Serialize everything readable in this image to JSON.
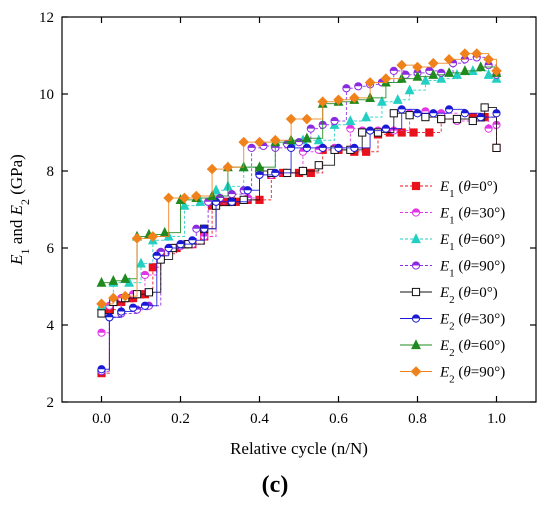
{
  "figure": {
    "panel_label": "(c)"
  },
  "chart_data": {
    "type": "line",
    "xlabel": "Relative cycle (n/N)",
    "ylabel": {
      "prefix": "E",
      "sub1": "1",
      "mid": " and E",
      "sub2": "2",
      "suffix": " (GPa)"
    },
    "xlim": [
      -0.1,
      1.1
    ],
    "ylim": [
      2,
      12
    ],
    "xticks": [
      "0.0",
      "0.2",
      "0.4",
      "0.6",
      "0.8",
      "1.0"
    ],
    "yticks": [
      "2",
      "4",
      "6",
      "8",
      "10",
      "12"
    ],
    "grid": false,
    "legend_position": "right",
    "series": [
      {
        "name": "E1 (θ=0°)",
        "label": {
          "sym": "E",
          "sub": "1",
          "ang": "0°"
        },
        "color": "#e8121c",
        "marker": "square",
        "dashed": true,
        "filled": true,
        "x": [
          0.0,
          0.02,
          0.05,
          0.08,
          0.11,
          0.13,
          0.15,
          0.19,
          0.23,
          0.26,
          0.28,
          0.31,
          0.34,
          0.37,
          0.4,
          0.43,
          0.46,
          0.5,
          0.53,
          0.56,
          0.6,
          0.64,
          0.67,
          0.7,
          0.73,
          0.76,
          0.79,
          0.83,
          0.86,
          0.9,
          0.94,
          0.97,
          1.0
        ],
        "y": [
          2.75,
          4.4,
          4.6,
          4.7,
          4.8,
          5.5,
          5.85,
          6.0,
          6.1,
          6.3,
          7.1,
          7.2,
          7.2,
          7.25,
          7.25,
          7.9,
          7.95,
          7.95,
          7.95,
          8.55,
          8.55,
          8.5,
          8.5,
          8.95,
          9.0,
          9.0,
          9.0,
          9.0,
          9.35,
          9.35,
          9.4,
          9.4,
          8.6
        ]
      },
      {
        "name": "E1 (θ=30°)",
        "label": {
          "sym": "E",
          "sub": "1",
          "ang": "30°"
        },
        "color": "#e334e8",
        "marker": "circle-half",
        "dashed": true,
        "filled": true,
        "x": [
          0.0,
          0.02,
          0.05,
          0.08,
          0.11,
          0.14,
          0.17,
          0.2,
          0.23,
          0.26,
          0.29,
          0.33,
          0.37,
          0.4,
          0.43,
          0.47,
          0.51,
          0.55,
          0.59,
          0.63,
          0.66,
          0.7,
          0.74,
          0.78,
          0.82,
          0.86,
          0.9,
          0.94,
          0.98,
          1.0
        ],
        "y": [
          3.8,
          4.5,
          4.7,
          4.8,
          5.3,
          5.8,
          6.0,
          6.05,
          6.1,
          6.3,
          7.15,
          7.2,
          7.3,
          7.9,
          7.9,
          7.95,
          8.5,
          8.55,
          8.6,
          9.1,
          9.05,
          9.05,
          9.05,
          9.5,
          9.55,
          9.5,
          9.3,
          9.3,
          9.1,
          9.2
        ]
      },
      {
        "name": "E1 (θ=60°)",
        "label": {
          "sym": "E",
          "sub": "1",
          "ang": "60°"
        },
        "color": "#22cfc2",
        "marker": "triangle",
        "dashed": true,
        "filled": true,
        "x": [
          0.0,
          0.03,
          0.07,
          0.1,
          0.13,
          0.17,
          0.21,
          0.25,
          0.29,
          0.32,
          0.36,
          0.4,
          0.44,
          0.48,
          0.51,
          0.55,
          0.59,
          0.63,
          0.67,
          0.71,
          0.75,
          0.78,
          0.82,
          0.86,
          0.9,
          0.94,
          0.98,
          1.0
        ],
        "y": [
          4.5,
          5.1,
          5.1,
          5.6,
          6.2,
          6.3,
          7.1,
          7.2,
          7.5,
          7.6,
          8.1,
          8.0,
          8.7,
          8.75,
          8.8,
          8.8,
          9.2,
          9.3,
          9.4,
          9.8,
          9.85,
          10.1,
          10.35,
          10.4,
          10.5,
          10.6,
          10.5,
          10.4
        ]
      },
      {
        "name": "E1 (θ=90°)",
        "label": {
          "sym": "E",
          "sub": "1",
          "ang": "90°"
        },
        "color": "#8a2be2",
        "marker": "circle-half",
        "dashed": true,
        "filled": true,
        "x": [
          0.0,
          0.02,
          0.05,
          0.09,
          0.12,
          0.15,
          0.18,
          0.21,
          0.24,
          0.27,
          0.3,
          0.33,
          0.36,
          0.38,
          0.41,
          0.44,
          0.47,
          0.5,
          0.53,
          0.56,
          0.59,
          0.62,
          0.65,
          0.68,
          0.71,
          0.74,
          0.77,
          0.8,
          0.83,
          0.86,
          0.89,
          0.92,
          0.95,
          0.98,
          1.0
        ],
        "y": [
          2.8,
          4.2,
          4.3,
          4.4,
          4.5,
          5.9,
          6.0,
          6.1,
          6.5,
          7.2,
          7.3,
          7.4,
          7.5,
          8.6,
          8.65,
          8.6,
          8.7,
          8.75,
          9.1,
          9.2,
          9.3,
          10.15,
          10.2,
          10.25,
          10.3,
          10.6,
          10.5,
          10.55,
          10.6,
          10.55,
          10.8,
          10.9,
          10.95,
          10.75,
          10.5
        ]
      },
      {
        "name": "E2 (θ=0°)",
        "label": {
          "sym": "E",
          "sub": "2",
          "ang": "0°"
        },
        "color": "#111111",
        "marker": "square",
        "dashed": false,
        "filled": false,
        "x": [
          0.0,
          0.03,
          0.06,
          0.09,
          0.12,
          0.15,
          0.18,
          0.22,
          0.26,
          0.29,
          0.33,
          0.36,
          0.4,
          0.43,
          0.47,
          0.51,
          0.55,
          0.59,
          0.63,
          0.66,
          0.7,
          0.74,
          0.78,
          0.82,
          0.86,
          0.9,
          0.94,
          0.97,
          1.0
        ],
        "y": [
          4.3,
          4.6,
          4.7,
          4.8,
          4.85,
          5.7,
          6.0,
          6.1,
          6.5,
          7.1,
          7.2,
          7.25,
          8.0,
          7.95,
          7.95,
          8.0,
          8.15,
          8.55,
          8.55,
          9.0,
          9.0,
          9.5,
          9.45,
          9.4,
          9.35,
          9.35,
          9.3,
          9.65,
          8.6
        ]
      },
      {
        "name": "E2 (θ=30°)",
        "label": {
          "sym": "E",
          "sub": "2",
          "ang": "30°"
        },
        "color": "#1a1ad6",
        "marker": "circle-half",
        "dashed": false,
        "filled": true,
        "x": [
          0.0,
          0.02,
          0.05,
          0.08,
          0.11,
          0.14,
          0.17,
          0.2,
          0.23,
          0.26,
          0.29,
          0.33,
          0.37,
          0.4,
          0.44,
          0.48,
          0.52,
          0.56,
          0.6,
          0.64,
          0.68,
          0.72,
          0.76,
          0.8,
          0.84,
          0.88,
          0.92,
          0.96,
          1.0
        ],
        "y": [
          2.85,
          4.2,
          4.35,
          4.45,
          4.5,
          5.8,
          6.0,
          6.1,
          6.2,
          6.5,
          7.2,
          7.2,
          7.5,
          7.9,
          7.95,
          8.6,
          8.6,
          8.6,
          8.6,
          8.6,
          9.05,
          9.1,
          9.6,
          9.5,
          9.5,
          9.6,
          9.5,
          9.4,
          9.5
        ]
      },
      {
        "name": "E2 (θ=60°)",
        "label": {
          "sym": "E",
          "sub": "2",
          "ang": "60°"
        },
        "color": "#1f8a1f",
        "marker": "triangle",
        "dashed": false,
        "filled": true,
        "x": [
          0.0,
          0.03,
          0.06,
          0.09,
          0.12,
          0.16,
          0.2,
          0.24,
          0.28,
          0.32,
          0.36,
          0.4,
          0.44,
          0.48,
          0.52,
          0.56,
          0.6,
          0.64,
          0.68,
          0.72,
          0.76,
          0.8,
          0.84,
          0.88,
          0.92,
          0.96,
          1.0
        ],
        "y": [
          5.1,
          5.15,
          5.2,
          6.3,
          6.35,
          6.4,
          7.25,
          7.3,
          7.35,
          8.1,
          8.1,
          8.1,
          8.75,
          8.8,
          8.85,
          9.75,
          9.8,
          9.85,
          9.9,
          10.3,
          10.4,
          10.45,
          10.5,
          10.55,
          10.6,
          10.7,
          10.55
        ]
      },
      {
        "name": "E2 (θ=90°)",
        "label": {
          "sym": "E",
          "sub": "2",
          "ang": "90°"
        },
        "color": "#f0821c",
        "marker": "diamond",
        "dashed": false,
        "filled": true,
        "x": [
          0.0,
          0.03,
          0.06,
          0.09,
          0.13,
          0.17,
          0.21,
          0.24,
          0.28,
          0.32,
          0.36,
          0.4,
          0.44,
          0.48,
          0.52,
          0.56,
          0.6,
          0.64,
          0.68,
          0.72,
          0.76,
          0.8,
          0.84,
          0.88,
          0.92,
          0.95,
          0.98,
          1.0
        ],
        "y": [
          4.55,
          4.7,
          4.75,
          6.25,
          6.3,
          7.3,
          7.3,
          7.35,
          8.05,
          8.1,
          8.75,
          8.75,
          8.8,
          9.35,
          9.35,
          9.8,
          9.85,
          9.9,
          10.3,
          10.4,
          10.75,
          10.7,
          10.8,
          10.9,
          11.05,
          11.05,
          10.9,
          10.6
        ]
      }
    ]
  }
}
